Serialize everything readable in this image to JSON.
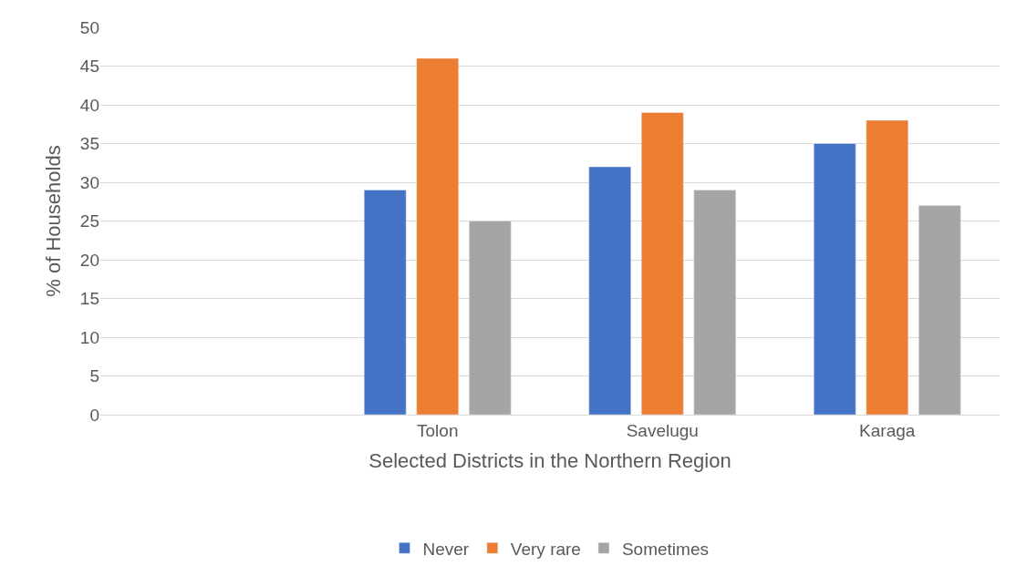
{
  "chart_data": {
    "type": "bar",
    "xlabel": "Selected Districts in the Northern Region",
    "ylabel": "% of Households",
    "categories": [
      null,
      "Tolon",
      "Savelugu",
      "Karaga"
    ],
    "series": [
      {
        "name": "Never",
        "color": "#4472c4",
        "values": [
          null,
          29,
          32,
          35
        ]
      },
      {
        "name": "Very rare",
        "color": "#ed7d31",
        "values": [
          null,
          46,
          39,
          38
        ]
      },
      {
        "name": "Sometimes",
        "color": "#a5a5a5",
        "values": [
          null,
          25,
          29,
          27
        ]
      }
    ],
    "ylim": [
      0,
      50
    ],
    "yticks": [
      0,
      5,
      10,
      15,
      20,
      25,
      30,
      35,
      40,
      45,
      50
    ],
    "grid": "y",
    "legend": "bottom"
  }
}
